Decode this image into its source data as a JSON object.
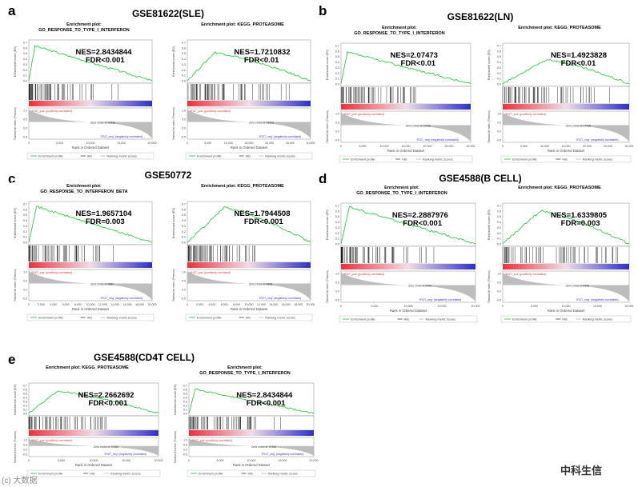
{
  "figure": {
    "panels": [
      {
        "letter": "a",
        "dataset": "GSE81622(SLE)",
        "plots": [
          {
            "title_line1": "Enrichment plot:",
            "title_line2": "GO_RESPONSE_TO_TYPE_I_INTERFERON",
            "nes": "NES=2.8434844",
            "fdr": "FDR<0.001",
            "zero_cross": "Zero cross at 12562",
            "xticks": [
              "0",
              "5,000",
              "10,000",
              "15,000",
              "20,000"
            ],
            "es_peak": 0.68,
            "peak_frac": 0.05,
            "shape": "decay",
            "hit_frac": 0.55
          },
          {
            "title_line1": "Enrichment plot: KEGG_PROTEASOME",
            "title_line2": "",
            "nes": "NES=1.7210832",
            "fdr": "FDR<0.01",
            "zero_cross": "Zero cross at 18306",
            "xticks": [
              "0",
              "5,000",
              "10,000",
              "15,000",
              "20,000",
              "25,000",
              "30,000"
            ],
            "es_peak": 0.55,
            "peak_frac": 0.22,
            "shape": "hump",
            "hit_frac": 0.7
          }
        ]
      },
      {
        "letter": "b",
        "dataset": "GSE81622(LN)",
        "plots": [
          {
            "title_line1": "Enrichment plot:",
            "title_line2": "GO_RESPONSE_TO_TYPE_I_INTERFERON",
            "nes": "NES=2.07473",
            "fdr": "FDR<0.01",
            "zero_cross": "Zero cross at 11446",
            "xticks": [
              "0",
              "5,000",
              "10,000",
              "15,000",
              "20,000",
              "25,000",
              "30,000"
            ],
            "es_peak": 0.62,
            "peak_frac": 0.05,
            "shape": "decay",
            "hit_frac": 0.6
          },
          {
            "title_line1": "Enrichment plot: KEGG_PROTEASOME",
            "title_line2": "",
            "nes": "NES=1.4923828",
            "fdr": "FDR<0.01",
            "zero_cross": "Zero cross at 17408",
            "xticks": [
              "0",
              "5,000",
              "10,000",
              "15,000",
              "20,000",
              "25,000",
              "30,000"
            ],
            "es_peak": 0.48,
            "peak_frac": 0.35,
            "shape": "hump",
            "hit_frac": 0.75
          }
        ]
      },
      {
        "letter": "c",
        "dataset": "GSE50772",
        "plots": [
          {
            "title_line1": "Enrichment plot:",
            "title_line2": "GO_RESPONSE_TO_INTERFERON_BETA",
            "nes": "NES=1.9657104",
            "fdr": "FDR=0.003",
            "zero_cross": "Zero cross at 9880",
            "xticks": [
              "0",
              "2,000",
              "4,000",
              "6,000",
              "8,000",
              "10,000",
              "12,000",
              "14,000",
              "16,000",
              "18,000",
              "20,000"
            ],
            "es_peak": 0.7,
            "peak_frac": 0.06,
            "shape": "decay",
            "hit_frac": 0.6
          },
          {
            "title_line1": "Enrichment plot: KEGG_PROTEASOME",
            "title_line2": "",
            "nes": "NES=1.7944508",
            "fdr": "FDR<0.001",
            "zero_cross": "Zero cross at 9898",
            "xticks": [
              "0",
              "2,000",
              "4,000",
              "6,000",
              "8,000",
              "10,000",
              "12,000",
              "14,000",
              "16,000",
              "18,000",
              "20,000"
            ],
            "es_peak": 0.68,
            "peak_frac": 0.3,
            "shape": "hump",
            "hit_frac": 0.55
          }
        ]
      },
      {
        "letter": "d",
        "dataset": "GSE4588(B CELL)",
        "plots": [
          {
            "title_line1": "Enrichment plot:",
            "title_line2": "GO_RESPONSE_TO_TYPE_I_INTERFERON",
            "nes": "NES=2.2887976",
            "fdr": "FDR<0.001",
            "zero_cross": "Zero cross at 6995",
            "xticks": [
              "0",
              "5,000",
              "10,000",
              "15,000",
              "20,000"
            ],
            "es_peak": 0.72,
            "peak_frac": 0.06,
            "shape": "decay",
            "hit_frac": 0.65
          },
          {
            "title_line1": "Enrichment plot: KEGG_PROTEASOME",
            "title_line2": "",
            "nes": "NES=1.6339805",
            "fdr": "FDR=0.003",
            "zero_cross": "Zero cross at 6995",
            "xticks": [
              "0",
              "5,000",
              "10,000",
              "15,000",
              "20,000"
            ],
            "es_peak": 0.65,
            "peak_frac": 0.3,
            "shape": "hump",
            "hit_frac": 0.9
          }
        ]
      },
      {
        "letter": "e",
        "dataset": "GSE4588(CD4T CELL)",
        "plots": [
          {
            "title_line1": "Enrichment plot: KEGG_PROTEASOME",
            "title_line2": "",
            "nes": "NES=2.2662692",
            "fdr": "FDR<0.001",
            "zero_cross": "Zero cross at 12462",
            "xticks": [
              "0",
              "5,000",
              "10,000",
              "15,000",
              "20,000"
            ],
            "es_peak": 0.6,
            "peak_frac": 0.22,
            "shape": "hump",
            "hit_frac": 0.6
          },
          {
            "title_line1": "Enrichment plot:",
            "title_line2": "GO_RESPONSE_TO_TYPE_I_INTERFERON",
            "nes": "NES=2.8434844",
            "fdr": "FDR<0.001",
            "zero_cross": "Zero cross at 12462",
            "xticks": [
              "0",
              "5,000",
              "10,000",
              "15,000",
              "20,000"
            ],
            "es_peak": 0.65,
            "peak_frac": 0.05,
            "shape": "decay",
            "hit_frac": 0.55
          }
        ]
      }
    ],
    "common": {
      "y_label_top": "Enrichment score (ES)",
      "y_label_bottom": "Ranked list metric (Pearson)",
      "x_label": "Rank in Ordered Dataset",
      "pos_label": "'IFIZ7_pos' (positively correlated)",
      "neg_label": "'IFIZ7_neg' (negatively correlated)",
      "legend_profile": "Enrichment profile",
      "legend_hits": "Hits",
      "legend_ranking": "Ranking metric scores",
      "es_ticks": [
        "0.7",
        "0.6",
        "0.5",
        "0.4",
        "0.3",
        "0.2",
        "0.1",
        "0.0"
      ],
      "metric_ticks": [
        "1.0",
        "0.5",
        "0.0",
        "-0.5"
      ]
    },
    "watermark_right": "中科生信",
    "watermark_left": "(c) 大数据",
    "colors": {
      "curve": "#2ecc40",
      "hits": "#000000",
      "red": "#e8323c",
      "blue": "#2c2fc4"
    }
  }
}
